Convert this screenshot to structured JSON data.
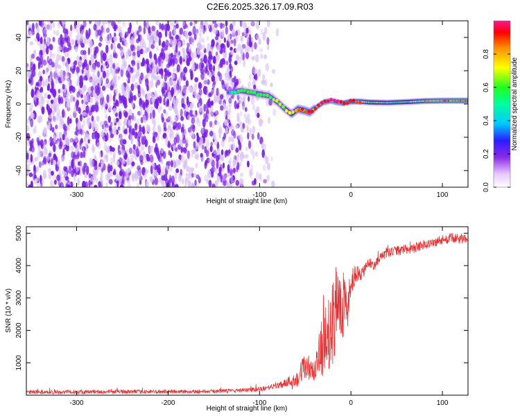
{
  "figure": {
    "title": "C2E6.2025.326.17.09.R03"
  },
  "colors": {
    "signal_band": "#2b2b2b",
    "snr_line": "#ee2c2c",
    "noise_purple": "#7a1fe8",
    "noise_light": "#d9c2f7",
    "axis": "#000000"
  },
  "chart_data": [
    {
      "type": "heatmap",
      "name": "spectrogram",
      "xlabel": "Height of straight line (km)",
      "ylabel": "Frequency (Hz)",
      "xlim": [
        -355,
        128
      ],
      "ylim": [
        -50,
        50
      ],
      "xticks": [
        -300,
        -200,
        -100,
        0,
        100
      ],
      "xtick_labels": [
        "-300",
        "-200",
        "-100",
        "0",
        "100"
      ],
      "yticks": [
        -40,
        -20,
        0,
        20,
        40
      ],
      "ytick_labels": [
        "-40",
        "-20",
        "0",
        "20",
        "40"
      ],
      "noise_region_x": [
        -355,
        -80
      ],
      "signal_track": {
        "x": [
          -135,
          -120,
          -110,
          -100,
          -90,
          -80,
          -72,
          -65,
          -58,
          -50,
          -45,
          -38,
          -30,
          -22,
          -15,
          -8,
          0,
          10,
          20,
          40,
          60,
          80,
          100,
          128
        ],
        "y": [
          7,
          8,
          7,
          6,
          5,
          1,
          -3,
          -6,
          -3,
          -4,
          -5,
          -2,
          1,
          2,
          1,
          0.5,
          1.5,
          1.5,
          1,
          0.8,
          1.2,
          1.8,
          2,
          2
        ],
        "amplitude": [
          0.35,
          0.4,
          0.4,
          0.45,
          0.45,
          0.5,
          0.55,
          0.6,
          0.7,
          0.75,
          0.75,
          0.75,
          0.8,
          0.85,
          0.85,
          0.8,
          0.8,
          0.75,
          0.65,
          0.55,
          0.6,
          0.75,
          0.85,
          0.9
        ]
      },
      "colorbar": {
        "label": "Normalized spectral amplitude",
        "range": [
          0,
          1
        ],
        "ticks": [
          0.0,
          0.2,
          0.4,
          0.6,
          0.8
        ],
        "tick_labels": [
          "0.0",
          "0.2",
          "0.4",
          "0.6",
          "0.8"
        ]
      }
    },
    {
      "type": "line",
      "name": "snr",
      "xlabel": "Height of straight line (km)",
      "ylabel": "SNR (10 * v/v)",
      "xlim": [
        -355,
        128
      ],
      "ylim": [
        0,
        5200
      ],
      "xticks": [
        -300,
        -200,
        -100,
        0,
        100
      ],
      "xtick_labels": [
        "-300",
        "-200",
        "-100",
        "0",
        "100"
      ],
      "yticks": [
        1000,
        2000,
        3000,
        4000,
        5000
      ],
      "ytick_labels": [
        "1000",
        "2000",
        "3000",
        "4000",
        "5000"
      ],
      "series": [
        {
          "name": "SNR",
          "x": [
            -355,
            -300,
            -250,
            -200,
            -150,
            -120,
            -100,
            -90,
            -80,
            -70,
            -60,
            -55,
            -50,
            -45,
            -40,
            -35,
            -30,
            -25,
            -20,
            -15,
            -10,
            -5,
            0,
            5,
            10,
            15,
            20,
            25,
            30,
            40,
            50,
            60,
            70,
            80,
            90,
            100,
            110,
            120,
            128
          ],
          "y": [
            100,
            100,
            110,
            110,
            120,
            150,
            180,
            230,
            300,
            400,
            500,
            700,
            900,
            800,
            600,
            1200,
            1500,
            1800,
            2300,
            2800,
            3000,
            2600,
            3300,
            3800,
            3600,
            3900,
            4100,
            4000,
            4200,
            4400,
            4450,
            4500,
            4550,
            4650,
            4700,
            4800,
            4850,
            4820,
            4900
          ],
          "noise_amplitude": [
            60,
            60,
            60,
            60,
            60,
            60,
            70,
            80,
            100,
            150,
            250,
            350,
            450,
            400,
            350,
            700,
            900,
            1100,
            1300,
            1300,
            1200,
            900,
            500,
            300,
            250,
            200,
            150,
            150,
            150,
            150,
            150,
            150,
            150,
            150,
            150,
            150,
            150,
            150,
            150
          ]
        }
      ]
    }
  ]
}
